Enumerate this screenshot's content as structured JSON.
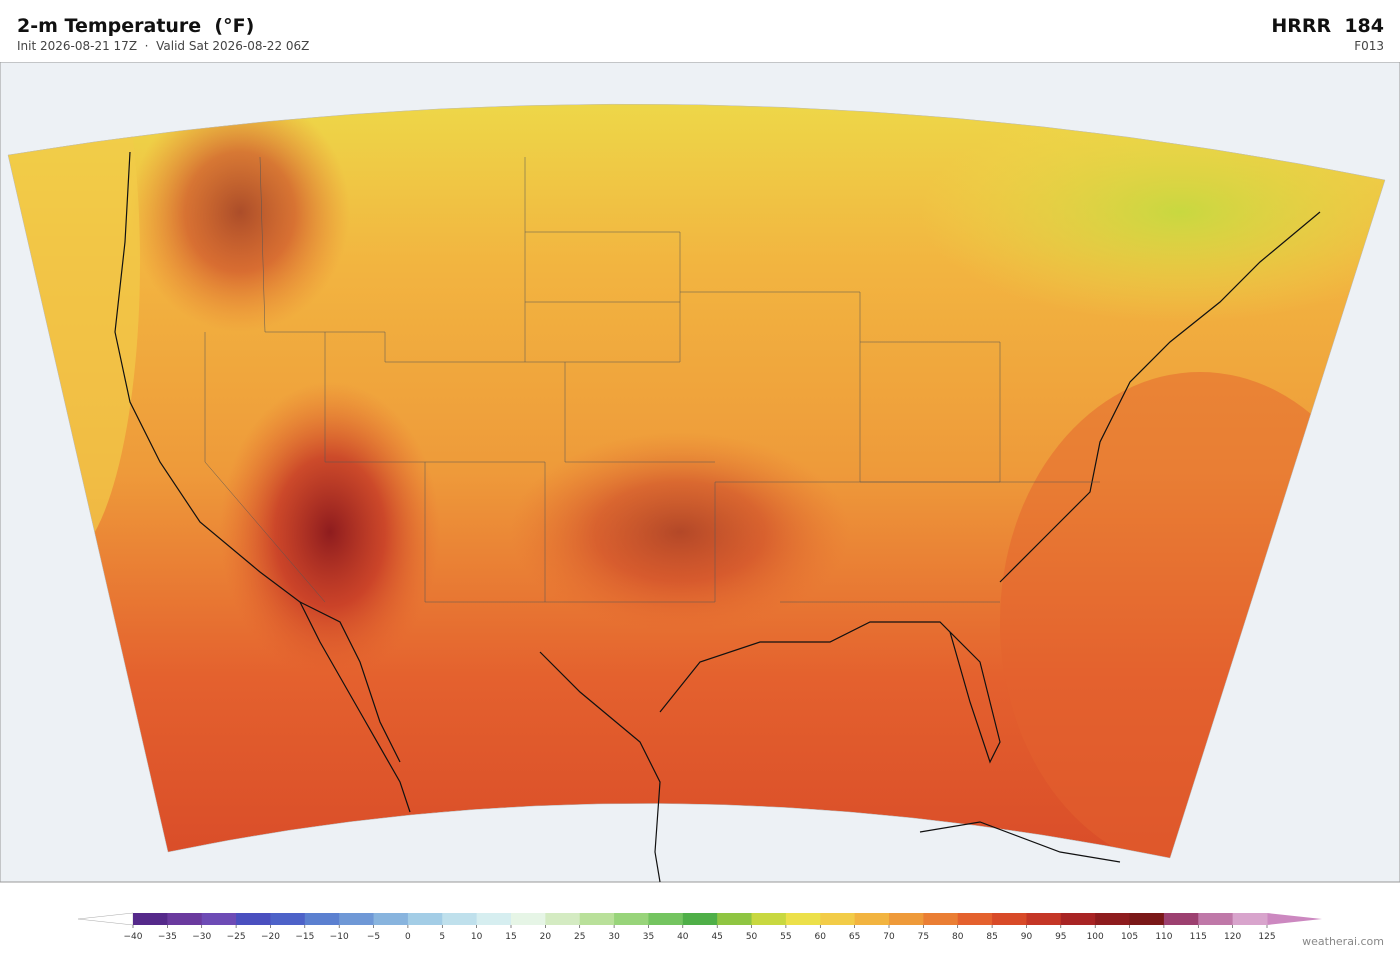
{
  "header": {
    "title": "2-m Temperature  (°F)",
    "subtitle": "Init 2026-08-21 17Z  ·  Valid Sat 2026-08-22 06Z",
    "model": "HRRR  184",
    "forecast_hour": "F013"
  },
  "colorbar": {
    "ticks": [
      {
        "value": -40,
        "label": "−40"
      },
      {
        "value": -35,
        "label": "−35"
      },
      {
        "value": -30,
        "label": "−30"
      },
      {
        "value": -25,
        "label": "−25"
      },
      {
        "value": -20,
        "label": "−20"
      },
      {
        "value": -15,
        "label": "−15"
      },
      {
        "value": -10,
        "label": "−10"
      },
      {
        "value": -5,
        "label": "−5"
      },
      0,
      5,
      10,
      15,
      20,
      25,
      30,
      35,
      40,
      45,
      50,
      55,
      60,
      65,
      70,
      75,
      80,
      85,
      90,
      95,
      100,
      105,
      110,
      115,
      120,
      125
    ],
    "colors": [
      "#55298a",
      "#6a3a9e",
      "#6d4bb5",
      "#4a4fbf",
      "#4d62c8",
      "#5b80d0",
      "#6f98d6",
      "#88b4de",
      "#a3cde6",
      "#bfe0ec",
      "#d6eef0",
      "#e6f5e6",
      "#d4ebc2",
      "#b9e09a",
      "#98d47a",
      "#74c460",
      "#4faf48",
      "#8fc542",
      "#c8d840",
      "#ece04a",
      "#f2cc48",
      "#f2b440",
      "#ee9a3a",
      "#ea7e34",
      "#e4612e",
      "#d84a28",
      "#c43626",
      "#a82424",
      "#8e1c1e",
      "#7a1818",
      "#9c4070",
      "#bf78a8",
      "#d8a4cc"
    ],
    "under_color": "#ffffff",
    "over_color": "#cc88c0"
  },
  "credit": "weatherai.com"
}
